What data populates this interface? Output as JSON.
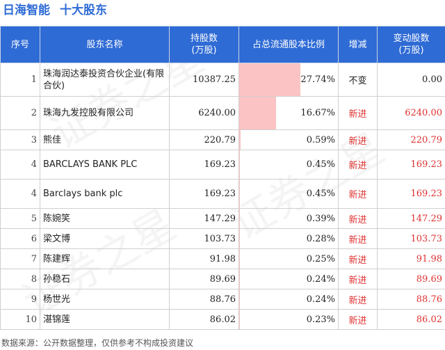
{
  "header": {
    "company": "日海智能",
    "section": "十大股东"
  },
  "table": {
    "columns": [
      "序号",
      "股东名称",
      "持股数\n(万股)",
      "占总流通股本比例",
      "增减",
      "变动股数\n(万股)"
    ],
    "rows": [
      {
        "seq": "1",
        "name": "珠海润达泰投资合伙企业(有限合伙)",
        "shares": "10387.25",
        "ratio": "27.74%",
        "ratio_value": 27.74,
        "change": "不变",
        "delta": "0.00"
      },
      {
        "seq": "2",
        "name": "珠海九发控股有限公司",
        "shares": "6240.00",
        "ratio": "16.67%",
        "ratio_value": 16.67,
        "change": "新进",
        "delta": "6240.00"
      },
      {
        "seq": "3",
        "name": "熊佳",
        "shares": "220.79",
        "ratio": "0.59%",
        "ratio_value": 0.59,
        "change": "新进",
        "delta": "220.79"
      },
      {
        "seq": "4",
        "name": "BARCLAYS BANK PLC",
        "shares": "169.23",
        "ratio": "0.45%",
        "ratio_value": 0.45,
        "change": "新进",
        "delta": "169.23"
      },
      {
        "seq": "4",
        "name": "Barclays bank plc",
        "shares": "169.23",
        "ratio": "0.45%",
        "ratio_value": 0.45,
        "change": "新进",
        "delta": "169.23"
      },
      {
        "seq": "5",
        "name": "陈婉笑",
        "shares": "147.29",
        "ratio": "0.39%",
        "ratio_value": 0.39,
        "change": "新进",
        "delta": "147.29"
      },
      {
        "seq": "6",
        "name": "梁文博",
        "shares": "103.73",
        "ratio": "0.28%",
        "ratio_value": 0.28,
        "change": "新进",
        "delta": "103.73"
      },
      {
        "seq": "7",
        "name": "陈建辉",
        "shares": "91.98",
        "ratio": "0.25%",
        "ratio_value": 0.25,
        "change": "新进",
        "delta": "91.98"
      },
      {
        "seq": "8",
        "name": "孙稳石",
        "shares": "89.69",
        "ratio": "0.24%",
        "ratio_value": 0.24,
        "change": "新进",
        "delta": "89.69"
      },
      {
        "seq": "9",
        "name": "杨世光",
        "shares": "88.76",
        "ratio": "0.24%",
        "ratio_value": 0.24,
        "change": "新进",
        "delta": "88.76"
      },
      {
        "seq": "10",
        "name": "湛锦莲",
        "shares": "86.02",
        "ratio": "0.23%",
        "ratio_value": 0.23,
        "change": "新进",
        "delta": "86.02"
      }
    ]
  },
  "footer": "数据来源：公开数据整理，仅供参考不构成投资建议",
  "colors": {
    "header_bg": "#2f6bd5",
    "title": "#2e6bd6",
    "bar": "#fbc3c3",
    "positive": "#e03030"
  }
}
